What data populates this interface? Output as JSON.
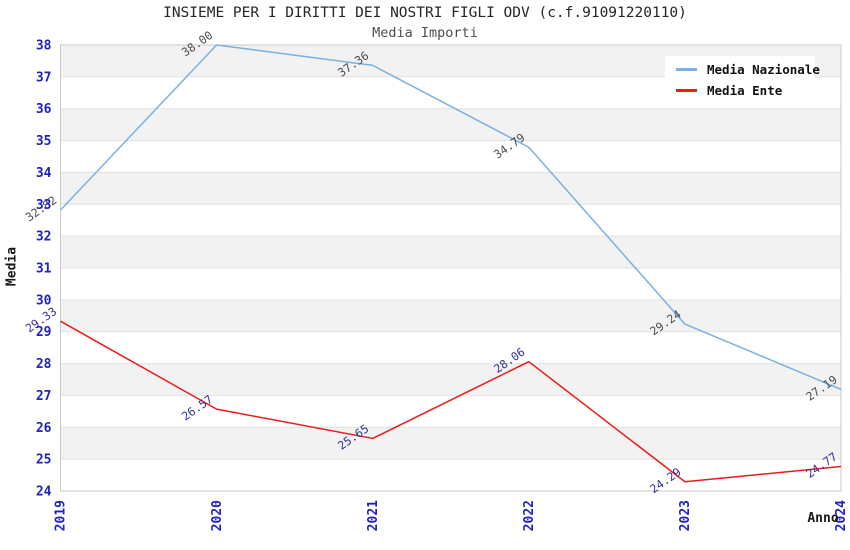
{
  "title": "INSIEME PER I DIRITTI DEI NOSTRI FIGLI ODV (c.f.91091220110)",
  "subtitle": "Media Importi",
  "chart_data": {
    "type": "line",
    "categories": [
      "2019",
      "2020",
      "2021",
      "2022",
      "2023",
      "2024"
    ],
    "series": [
      {
        "name": "Media Nazionale",
        "color": "#7cb0e2",
        "label_color": "#4d4d4d",
        "values": [
          32.82,
          38.0,
          37.36,
          34.79,
          29.24,
          27.19
        ],
        "labels": [
          "32.82",
          "38.00",
          "37.36",
          "34.79",
          "29.24",
          "27.19"
        ]
      },
      {
        "name": "Media Ente",
        "color": "#ee1a1a",
        "label_color": "#333399",
        "values": [
          29.33,
          26.57,
          25.65,
          28.06,
          24.29,
          24.77
        ],
        "labels": [
          "29.33",
          "26.57",
          "25.65",
          "28.06",
          "24.29",
          "24.77"
        ]
      }
    ],
    "xlabel": "Anno",
    "ylabel": "Media",
    "ylim": [
      24,
      38
    ],
    "yticks": [
      38,
      37,
      36,
      35,
      34,
      33,
      32,
      31,
      30,
      29,
      28,
      27,
      26,
      25,
      24
    ],
    "grid": true,
    "legend_position": "top-right",
    "band_colors": [
      "#f2f2f2",
      "#ffffff"
    ],
    "gridline_color": "#e2e2e2",
    "border_color": "#c8c8c8",
    "axis_tick_color": "#2222bb"
  }
}
